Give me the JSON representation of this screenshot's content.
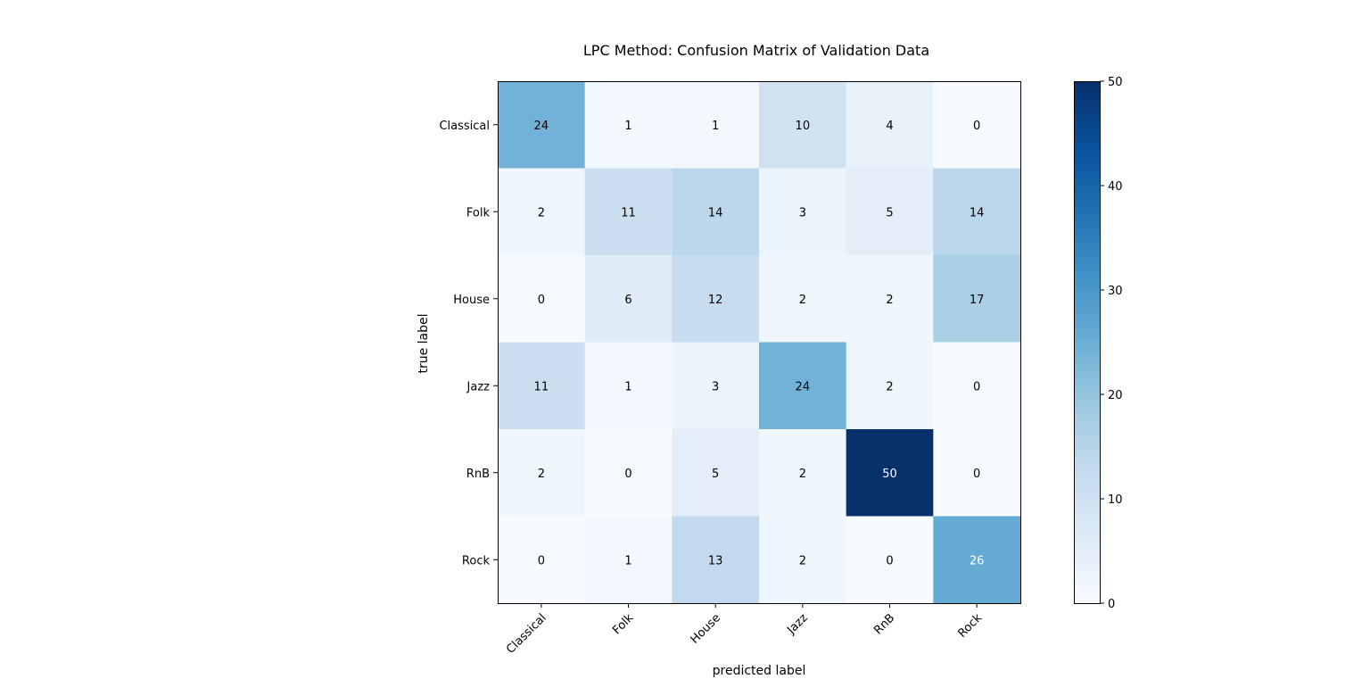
{
  "chart_data": {
    "type": "heatmap",
    "title": "LPC Method: Confusion Matrix of Validation Data",
    "xlabel": "predicted label",
    "ylabel": "true label",
    "x_categories": [
      "Classical",
      "Folk",
      "House",
      "Jazz",
      "RnB",
      "Rock"
    ],
    "y_categories": [
      "Classical",
      "Folk",
      "House",
      "Jazz",
      "RnB",
      "Rock"
    ],
    "matrix": [
      [
        24,
        1,
        1,
        10,
        4,
        0
      ],
      [
        2,
        11,
        14,
        3,
        5,
        14
      ],
      [
        0,
        6,
        12,
        2,
        2,
        17
      ],
      [
        11,
        1,
        3,
        24,
        2,
        0
      ],
      [
        2,
        0,
        5,
        2,
        50,
        0
      ],
      [
        0,
        1,
        13,
        2,
        0,
        26
      ]
    ],
    "colormap": "Blues",
    "colorbar": {
      "min": 0,
      "max": 50,
      "ticks": [
        0,
        10,
        20,
        30,
        40,
        50
      ]
    }
  }
}
